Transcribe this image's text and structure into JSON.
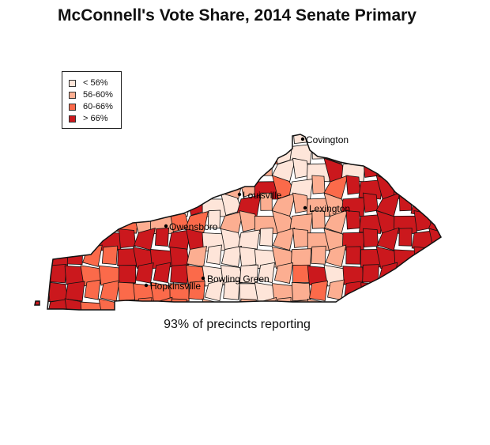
{
  "title": "McConnell's Vote Share, 2014 Senate Primary",
  "footer": "93% of precincts reporting",
  "legend": [
    {
      "label": "< 56%",
      "color": "#fee5d9"
    },
    {
      "label": "56-60%",
      "color": "#fcae91"
    },
    {
      "label": "60-66%",
      "color": "#fb6a4a"
    },
    {
      "label": "> 66%",
      "color": "#cb181d"
    }
  ],
  "cities": [
    "Covington",
    "Louisville",
    "Lexington",
    "Owensboro",
    "Bowling Green",
    "Hopkinsville"
  ]
}
